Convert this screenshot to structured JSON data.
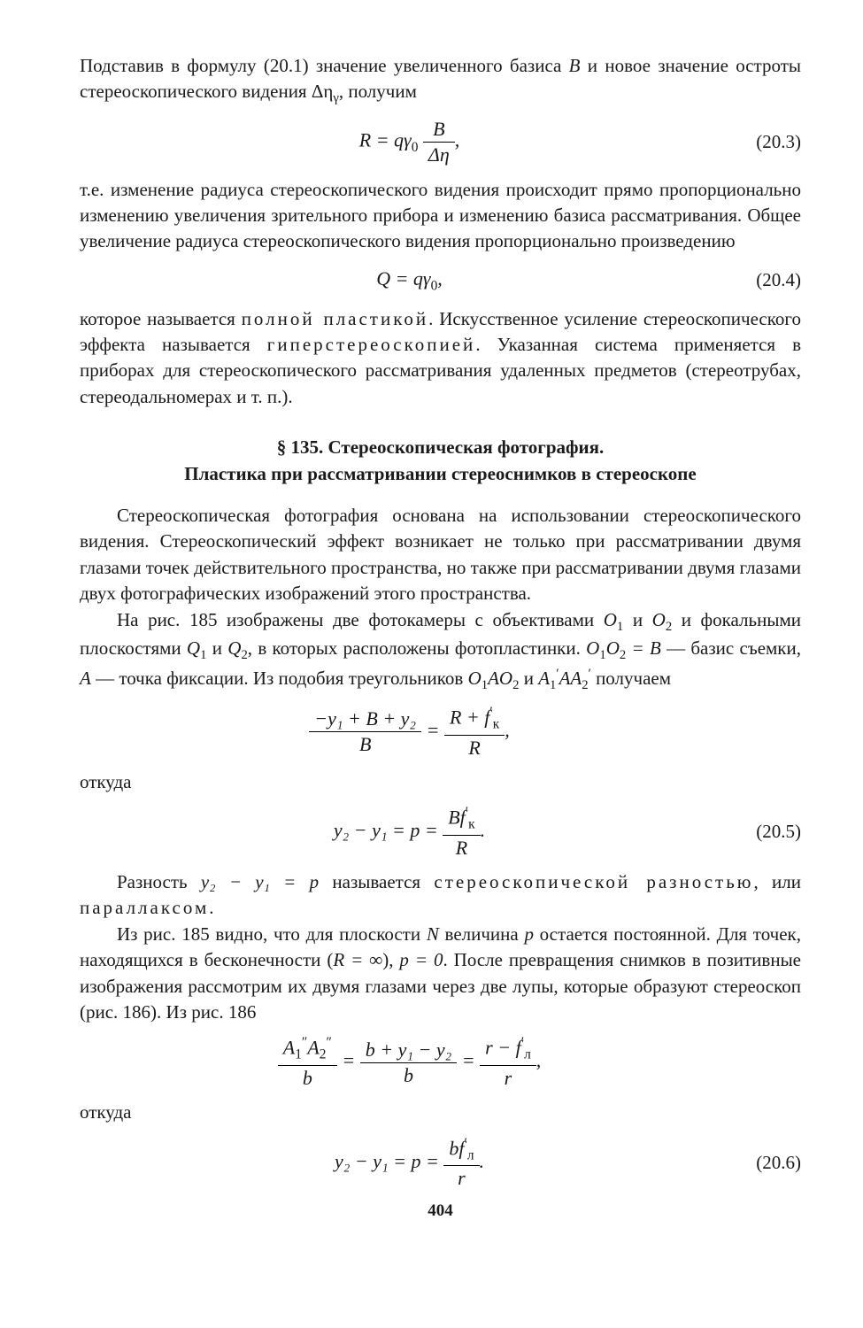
{
  "p1": "Подставив в формулу (20.1) значение увеличенного базиса ",
  "p1_var": "B",
  "p1_end": " и новое значение остроты стереоскопического видения Δη",
  "p1_sub": "γ",
  "p1_tail": ", получим",
  "eq1": {
    "lhs": "R = qγ",
    "sub0": "0",
    "num": "B",
    "den": "Δη",
    "comma": ",",
    "number": "(20.3)"
  },
  "p2": "т.е. изменение радиуса стереоскопического видения происходит прямо пропорционально изменению увеличения зрительного прибора и изменению базиса рассматривания. Общее увеличение радиуса стереоскопического видения пропорционально произведению",
  "eq2": {
    "formula": "Q = qγ",
    "sub": "0",
    "comma": ",",
    "number": "(20.4)"
  },
  "p3_a": "которое называется ",
  "p3_b": "полной пластикой",
  "p3_c": ". Искусственное усиление стереоскопического эффекта называется ",
  "p3_d": "гиперстереоскопией",
  "p3_e": ". Указанная система применяется в приборах для стереоскопического рассматривания удаленных предметов (стереотрубах, стереодальномерах и т. п.).",
  "heading_line1": "§ 135. Стереоскопическая фотография.",
  "heading_line2": "Пластика при рассматривании стереоснимков в стереоскопе",
  "p4": "Стереоскопическая фотография основана на использовании стереоскопического видения. Стереоскопический эффект возникает не только при рассматривании двумя глазами точек действительного пространства, но также при рассматривании двумя глазами двух фотографических изображений этого пространства.",
  "p5_a": "На рис. 185 изображены две фотокамеры с объективами ",
  "p5_O1": "O",
  "p5_s1": "1",
  "p5_and": " и ",
  "p5_O2": "O",
  "p5_s2": "2",
  "p5_b": " и фокальными плоскостями ",
  "p5_Q1": "Q",
  "p5_qs1": "1",
  "p5_and2": " и ",
  "p5_Q2": "Q",
  "p5_qs2": "2",
  "p5_c": ", в которых расположены фотопластинки. ",
  "p5_O1O2": "O",
  "p5_1": "1",
  "p5_O2b": "O",
  "p5_2": "2",
  "p5_eqB": " = B",
  "p5_d": " — базис съемки, ",
  "p5_A": "A",
  "p5_e": " — точка фиксации. Из подобия треугольников ",
  "p5_t1": "O",
  "p5_t1s": "1",
  "p5_t1A": "AO",
  "p5_t1s2": "2",
  "p5_and3": " и ",
  "p5_t2": "A",
  "p5_t2s1": "1",
  "p5_t2p": "′",
  "p5_t2A": "AA",
  "p5_t2s2": "2",
  "p5_t2p2": "′",
  "p5_f": " получаем",
  "eq3": {
    "num1": "−y₁ + B + y₂",
    "den1": "B",
    "eq": " = ",
    "num2_a": "R + f",
    "num2_sup": "′",
    "num2_sub": "к",
    "den2": "R",
    "comma": ","
  },
  "p6": "откуда",
  "eq4": {
    "lhs": "y₂ − y₁ = p = ",
    "num_a": "Bf",
    "num_sup": "′",
    "num_sub": "к",
    "den": "R",
    "period": ".",
    "number": "(20.5)"
  },
  "p7_a": "Разность ",
  "p7_var": "y₂ − y₁ = p",
  "p7_b": " называется ",
  "p7_c": "стереоскопической разностью",
  "p7_d": ", или ",
  "p7_e": "параллаксом",
  "p7_f": ".",
  "p8_a": "Из рис. 185 видно, что для плоскости ",
  "p8_N": "N",
  "p8_b": " величина ",
  "p8_p": "p",
  "p8_c": " остается постоянной. Для точек, находящихся в бесконечности (",
  "p8_Rinf": "R = ∞",
  "p8_d": "), ",
  "p8_p0": "p = 0",
  "p8_e": ". После превращения снимков в позитивные изображения рассмотрим их двумя глазами через две лупы, которые образуют стереоскоп (рис. 186). Из рис. 186",
  "eq5": {
    "num1_a": "A",
    "num1_s1": "1",
    "num1_p1": "″",
    "num1_a2": "A",
    "num1_s2": "2",
    "num1_p2": "″",
    "den1": "b",
    "eq1": " = ",
    "num2": "b + y₁ − y₂",
    "den2": "b",
    "eq2": " = ",
    "num3_a": "r − f",
    "num3_sup": "′",
    "num3_sub": "л",
    "den3": "r",
    "comma": ","
  },
  "p9": "откуда",
  "eq6": {
    "lhs": "y₂ − y₁ = p = ",
    "num_a": "bf",
    "num_sup": "′",
    "num_sub": "л",
    "den": "r",
    "period": ".",
    "number": "(20.6)"
  },
  "page_number": "404"
}
